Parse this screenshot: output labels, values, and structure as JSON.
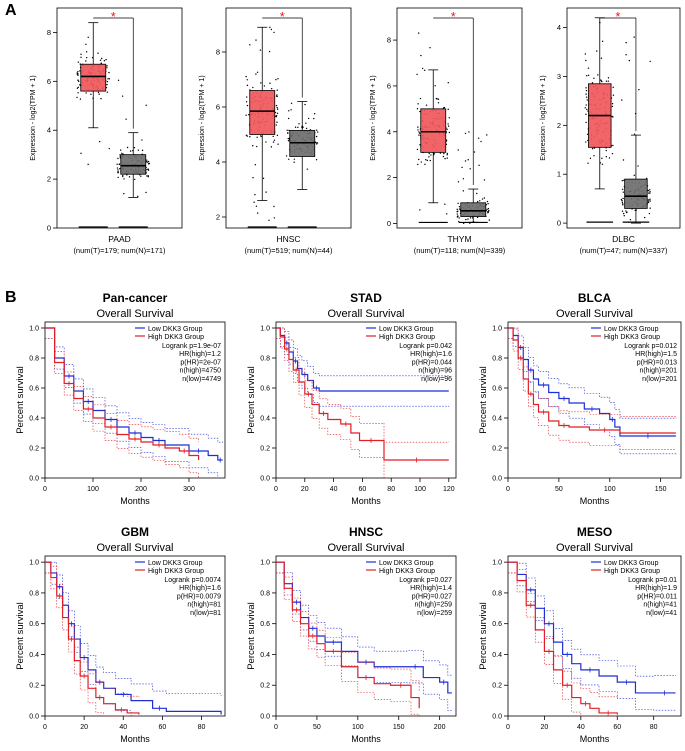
{
  "panel_a": {
    "label": "A"
  },
  "panel_b": {
    "label": "B"
  },
  "colors": {
    "tumor": "#F0575A",
    "normal": "#6E6E6E",
    "sig": "#E8191B",
    "low": "#1F2FD6",
    "high": "#E01F26"
  },
  "chart_data": [
    {
      "type": "box",
      "title": "PAAD",
      "subtitle": "(num(T)=179; num(N)=171)",
      "ylabel": "Expression - log2(TPM + 1)",
      "ylim": [
        0,
        9
      ],
      "ticks": [
        0,
        2,
        4,
        6,
        8
      ],
      "sig_marker": "*",
      "boxes": [
        {
          "group": "Tumor",
          "q1": 5.6,
          "median": 6.2,
          "q3": 6.7,
          "wlo": 4.1,
          "whi": 8.4,
          "pts_lo": 2.3,
          "pts_hi": 8.5
        },
        {
          "group": "Normal",
          "q1": 2.2,
          "median": 2.55,
          "q3": 3.0,
          "wlo": 1.25,
          "whi": 3.9,
          "pts_lo": 1.2,
          "pts_hi": 6.9
        }
      ]
    },
    {
      "type": "box",
      "title": "HNSC",
      "subtitle": "(num(T)=519; num(N)=44)",
      "ylabel": "Expression - log2(TPM + 1)",
      "ylim": [
        1.6,
        9.6
      ],
      "ticks": [
        2,
        4,
        6,
        8
      ],
      "sig_marker": "*",
      "boxes": [
        {
          "group": "Tumor",
          "q1": 5.0,
          "median": 5.85,
          "q3": 6.6,
          "wlo": 2.6,
          "whi": 8.9,
          "pts_lo": 1.8,
          "pts_hi": 9.0
        },
        {
          "group": "Normal",
          "q1": 4.2,
          "median": 4.7,
          "q3": 5.15,
          "wlo": 3.0,
          "whi": 6.2,
          "pts_lo": 3.0,
          "pts_hi": 6.2
        }
      ]
    },
    {
      "type": "box",
      "title": "THYM",
      "subtitle": "(num(T)=118; num(N)=339)",
      "ylabel": "Expression - log2(TPM + 1)",
      "ylim": [
        -0.2,
        9.4
      ],
      "ticks": [
        0,
        2,
        4,
        6,
        8
      ],
      "sig_marker": "*",
      "boxes": [
        {
          "group": "Tumor",
          "q1": 3.1,
          "median": 4.0,
          "q3": 5.0,
          "wlo": 0.9,
          "whi": 6.7,
          "pts_lo": 0.2,
          "pts_hi": 8.8
        },
        {
          "group": "Normal",
          "q1": 0.3,
          "median": 0.55,
          "q3": 0.9,
          "wlo": 0.05,
          "whi": 1.5,
          "pts_lo": 0.0,
          "pts_hi": 4.2
        }
      ]
    },
    {
      "type": "box",
      "title": "DLBC",
      "subtitle": "(num(T)=47; num(N)=337)",
      "ylabel": "Expression - log2(TPM + 1)",
      "ylim": [
        -0.1,
        4.4
      ],
      "ticks": [
        0,
        1,
        2,
        3,
        4
      ],
      "sig_marker": "*",
      "boxes": [
        {
          "group": "Tumor",
          "q1": 1.55,
          "median": 2.2,
          "q3": 2.85,
          "wlo": 0.7,
          "whi": 4.2,
          "pts_lo": 0.7,
          "pts_hi": 4.2
        },
        {
          "group": "Normal",
          "q1": 0.3,
          "median": 0.55,
          "q3": 0.9,
          "wlo": 0.0,
          "whi": 1.8,
          "pts_lo": 0.0,
          "pts_hi": 4.0
        }
      ]
    },
    {
      "type": "km",
      "title": "Pan-cancer",
      "subtitle": "Overall Survival",
      "xlabel": "Months",
      "ylabel": "Percent survival",
      "xlim": [
        0,
        375
      ],
      "xticks": [
        0,
        100,
        200,
        300
      ],
      "legend": [
        "Low DKK3 Group",
        "High DKK3 Group"
      ],
      "stats": [
        "Logrank p=1.9e-07",
        "HR(high)=1.2",
        "p(HR)=2e-07",
        "n(high)=4750",
        "n(low)=4749"
      ],
      "low": [
        [
          0,
          1
        ],
        [
          20,
          0.8
        ],
        [
          40,
          0.68
        ],
        [
          60,
          0.58
        ],
        [
          80,
          0.51
        ],
        [
          100,
          0.45
        ],
        [
          125,
          0.39
        ],
        [
          150,
          0.34
        ],
        [
          175,
          0.3
        ],
        [
          200,
          0.27
        ],
        [
          225,
          0.25
        ],
        [
          250,
          0.22
        ],
        [
          300,
          0.18
        ],
        [
          340,
          0.15
        ],
        [
          360,
          0.12
        ],
        [
          370,
          0.12
        ]
      ],
      "high": [
        [
          0,
          1
        ],
        [
          20,
          0.77
        ],
        [
          40,
          0.63
        ],
        [
          60,
          0.53
        ],
        [
          80,
          0.46
        ],
        [
          100,
          0.4
        ],
        [
          125,
          0.34
        ],
        [
          150,
          0.29
        ],
        [
          175,
          0.26
        ],
        [
          200,
          0.24
        ],
        [
          225,
          0.22
        ],
        [
          250,
          0.2
        ],
        [
          280,
          0.18
        ],
        [
          300,
          0.15
        ],
        [
          320,
          0.12
        ]
      ]
    },
    {
      "type": "km",
      "title": "STAD",
      "subtitle": "Overall Survival",
      "xlabel": "Months",
      "ylabel": "Percent survival",
      "xlim": [
        0,
        125
      ],
      "xticks": [
        0,
        20,
        40,
        60,
        80,
        100,
        120
      ],
      "legend": [
        "Low DKK3 Group",
        "High DKK3 Group"
      ],
      "stats": [
        "Logrank p=0.042",
        "HR(high)=1.6",
        "p(HR)=0.044",
        "n(high)=96",
        "n(low)=96"
      ],
      "low": [
        [
          0,
          1
        ],
        [
          3,
          0.95
        ],
        [
          6,
          0.9
        ],
        [
          9,
          0.84
        ],
        [
          12,
          0.78
        ],
        [
          15,
          0.73
        ],
        [
          18,
          0.69
        ],
        [
          22,
          0.65
        ],
        [
          26,
          0.6
        ],
        [
          30,
          0.58
        ],
        [
          120,
          0.58
        ]
      ],
      "high": [
        [
          0,
          1
        ],
        [
          3,
          0.94
        ],
        [
          6,
          0.86
        ],
        [
          9,
          0.79
        ],
        [
          12,
          0.72
        ],
        [
          16,
          0.64
        ],
        [
          20,
          0.56
        ],
        [
          25,
          0.49
        ],
        [
          30,
          0.43
        ],
        [
          36,
          0.39
        ],
        [
          45,
          0.36
        ],
        [
          52,
          0.3
        ],
        [
          58,
          0.25
        ],
        [
          74,
          0.25
        ],
        [
          75,
          0.12
        ],
        [
          120,
          0.12
        ]
      ]
    },
    {
      "type": "km",
      "title": "BLCA",
      "subtitle": "Overall Survival",
      "xlabel": "Months",
      "ylabel": "Percent survival",
      "xlim": [
        0,
        170
      ],
      "xticks": [
        0,
        50,
        100,
        150
      ],
      "legend": [
        "Low DKK3 Group",
        "High DKK3 Group"
      ],
      "stats": [
        "Logrank p=0.012",
        "HR(high)=1.5",
        "p(HR)=0.013",
        "n(high)=201",
        "n(low)=201"
      ],
      "low": [
        [
          0,
          1
        ],
        [
          5,
          0.95
        ],
        [
          10,
          0.87
        ],
        [
          15,
          0.79
        ],
        [
          20,
          0.72
        ],
        [
          25,
          0.66
        ],
        [
          30,
          0.62
        ],
        [
          40,
          0.57
        ],
        [
          50,
          0.53
        ],
        [
          60,
          0.5
        ],
        [
          75,
          0.46
        ],
        [
          90,
          0.43
        ],
        [
          100,
          0.39
        ],
        [
          105,
          0.34
        ],
        [
          110,
          0.28
        ],
        [
          165,
          0.28
        ]
      ],
      "high": [
        [
          0,
          1
        ],
        [
          5,
          0.92
        ],
        [
          10,
          0.8
        ],
        [
          15,
          0.66
        ],
        [
          20,
          0.56
        ],
        [
          25,
          0.49
        ],
        [
          30,
          0.44
        ],
        [
          40,
          0.38
        ],
        [
          50,
          0.35
        ],
        [
          60,
          0.34
        ],
        [
          80,
          0.32
        ],
        [
          110,
          0.3
        ],
        [
          165,
          0.3
        ]
      ]
    },
    {
      "type": "km",
      "title": "GBM",
      "subtitle": "Overall Survival",
      "xlabel": "Months",
      "ylabel": "Percent survival",
      "xlim": [
        0,
        92
      ],
      "xticks": [
        0,
        20,
        40,
        60,
        80
      ],
      "legend": [
        "Low DKK3 Group",
        "High DKK3 Group"
      ],
      "stats": [
        "Logrank p=0.0074",
        "HR(high)=1.6",
        "p(HR)=0.0079",
        "n(high)=81",
        "n(low)=81"
      ],
      "low": [
        [
          0,
          1
        ],
        [
          3,
          0.93
        ],
        [
          6,
          0.84
        ],
        [
          9,
          0.72
        ],
        [
          12,
          0.6
        ],
        [
          15,
          0.5
        ],
        [
          18,
          0.38
        ],
        [
          22,
          0.3
        ],
        [
          26,
          0.22
        ],
        [
          30,
          0.18
        ],
        [
          36,
          0.14
        ],
        [
          44,
          0.1
        ],
        [
          55,
          0.05
        ],
        [
          62,
          0.03
        ],
        [
          90,
          0.01
        ]
      ],
      "high": [
        [
          0,
          1
        ],
        [
          3,
          0.9
        ],
        [
          6,
          0.78
        ],
        [
          9,
          0.64
        ],
        [
          12,
          0.5
        ],
        [
          15,
          0.36
        ],
        [
          18,
          0.26
        ],
        [
          22,
          0.18
        ],
        [
          26,
          0.12
        ],
        [
          30,
          0.08
        ],
        [
          36,
          0.04
        ],
        [
          42,
          0.02
        ],
        [
          48,
          0.01
        ]
      ]
    },
    {
      "type": "km",
      "title": "HNSC",
      "subtitle": "Overall Survival",
      "xlabel": "Months",
      "ylabel": "Percent survival",
      "xlim": [
        0,
        220
      ],
      "xticks": [
        0,
        50,
        100,
        150,
        200
      ],
      "legend": [
        "Low DKK3 Group",
        "High DKK3 Group"
      ],
      "stats": [
        "Logrank p=0.027",
        "HR(high)=1.4",
        "p(HR)=0.027",
        "n(high)=259",
        "n(low)=259"
      ],
      "low": [
        [
          0,
          1
        ],
        [
          10,
          0.86
        ],
        [
          20,
          0.74
        ],
        [
          30,
          0.64
        ],
        [
          40,
          0.57
        ],
        [
          50,
          0.52
        ],
        [
          60,
          0.48
        ],
        [
          80,
          0.42
        ],
        [
          100,
          0.35
        ],
        [
          120,
          0.32
        ],
        [
          160,
          0.32
        ],
        [
          180,
          0.25
        ],
        [
          200,
          0.22
        ],
        [
          210,
          0.15
        ],
        [
          215,
          0.15
        ]
      ],
      "high": [
        [
          0,
          1
        ],
        [
          10,
          0.83
        ],
        [
          20,
          0.69
        ],
        [
          30,
          0.6
        ],
        [
          40,
          0.52
        ],
        [
          50,
          0.47
        ],
        [
          60,
          0.42
        ],
        [
          80,
          0.32
        ],
        [
          100,
          0.25
        ],
        [
          120,
          0.21
        ],
        [
          140,
          0.2
        ],
        [
          165,
          0.12
        ],
        [
          175,
          0.05
        ]
      ]
    },
    {
      "type": "km",
      "title": "MESO",
      "subtitle": "Overall Survival",
      "xlabel": "Months",
      "ylabel": "Percent survival",
      "xlim": [
        0,
        95
      ],
      "xticks": [
        0,
        20,
        40,
        60,
        80
      ],
      "legend": [
        "Low DKK3 Group",
        "High DKK3 Group"
      ],
      "stats": [
        "Logrank p=0.01",
        "HR(high)=1.9",
        "p(HR)=0.011",
        "n(high)=41",
        "n(low)=41"
      ],
      "low": [
        [
          0,
          1
        ],
        [
          5,
          0.92
        ],
        [
          10,
          0.82
        ],
        [
          15,
          0.7
        ],
        [
          20,
          0.6
        ],
        [
          25,
          0.48
        ],
        [
          30,
          0.4
        ],
        [
          35,
          0.34
        ],
        [
          40,
          0.3
        ],
        [
          50,
          0.26
        ],
        [
          60,
          0.22
        ],
        [
          70,
          0.15
        ],
        [
          80,
          0.15
        ],
        [
          92,
          0.15
        ]
      ],
      "high": [
        [
          0,
          1
        ],
        [
          5,
          0.88
        ],
        [
          10,
          0.72
        ],
        [
          15,
          0.56
        ],
        [
          20,
          0.42
        ],
        [
          25,
          0.3
        ],
        [
          30,
          0.2
        ],
        [
          35,
          0.12
        ],
        [
          40,
          0.08
        ],
        [
          45,
          0.05
        ],
        [
          50,
          0.02
        ],
        [
          60,
          0.01
        ]
      ]
    }
  ]
}
